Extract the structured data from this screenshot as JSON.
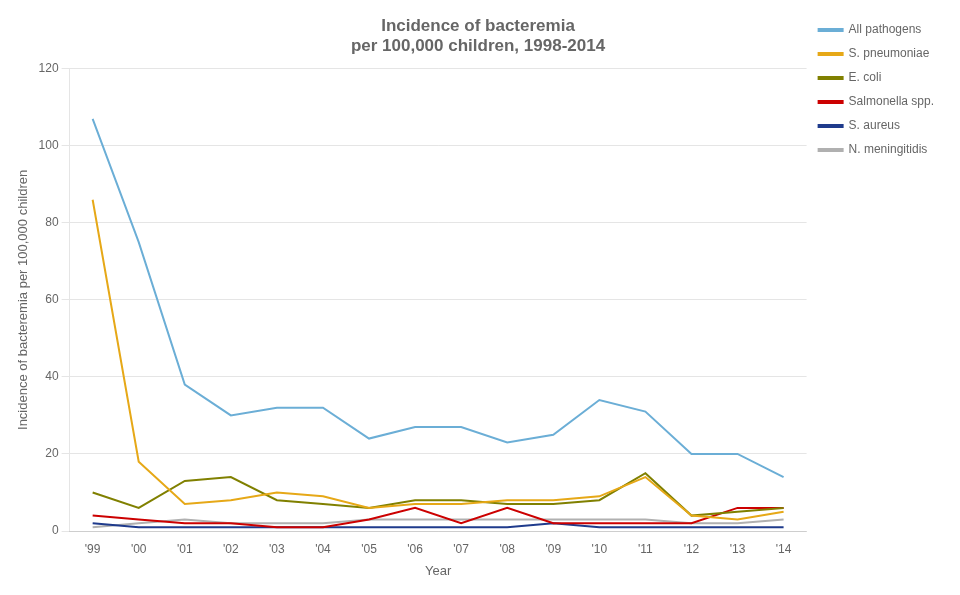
{
  "chart_data": {
    "type": "line",
    "title": "Incidence of bacteremia\nper 100,000 children, 1998-2014",
    "xlabel": "Year",
    "ylabel": "Incidence of bacteremia per 100,000 children",
    "categories": [
      "'99",
      "'00",
      "'01",
      "'02",
      "'03",
      "'04",
      "'05",
      "'06",
      "'07",
      "'08",
      "'09",
      "'10",
      "'11",
      "'12",
      "'13",
      "'14"
    ],
    "series": [
      {
        "name": "All pathogens",
        "color": "#6baed6",
        "values": [
          107,
          75,
          38,
          30,
          32,
          32,
          24,
          27,
          27,
          23,
          25,
          34,
          31,
          20,
          20,
          14
        ]
      },
      {
        "name": "S. pneumoniae",
        "color": "#e6a817",
        "values": [
          86,
          18,
          7,
          8,
          10,
          9,
          6,
          7,
          7,
          8,
          8,
          9,
          14,
          4,
          3,
          5
        ]
      },
      {
        "name": "E. coli",
        "color": "#808000",
        "values": [
          10,
          6,
          13,
          14,
          8,
          7,
          6,
          8,
          8,
          7,
          7,
          8,
          15,
          4,
          5,
          6
        ]
      },
      {
        "name": "Salmonella spp.",
        "color": "#cc0000",
        "values": [
          4,
          3,
          2,
          2,
          1,
          1,
          3,
          6,
          2,
          6,
          2,
          2,
          2,
          2,
          6,
          6
        ]
      },
      {
        "name": "S. aureus",
        "color": "#1f3b8c",
        "values": [
          2,
          1,
          1,
          1,
          1,
          1,
          1,
          1,
          1,
          1,
          2,
          1,
          1,
          1,
          1,
          1
        ]
      },
      {
        "name": "N. meningitidis",
        "color": "#b0b0b0",
        "values": [
          1,
          2,
          3,
          2,
          2,
          2,
          3,
          3,
          3,
          3,
          3,
          3,
          3,
          2,
          2,
          3
        ]
      }
    ],
    "ylim": [
      0,
      120
    ],
    "yticks": [
      0,
      20,
      40,
      60,
      80,
      100,
      120
    ],
    "grid": true,
    "legend": "upper right"
  }
}
